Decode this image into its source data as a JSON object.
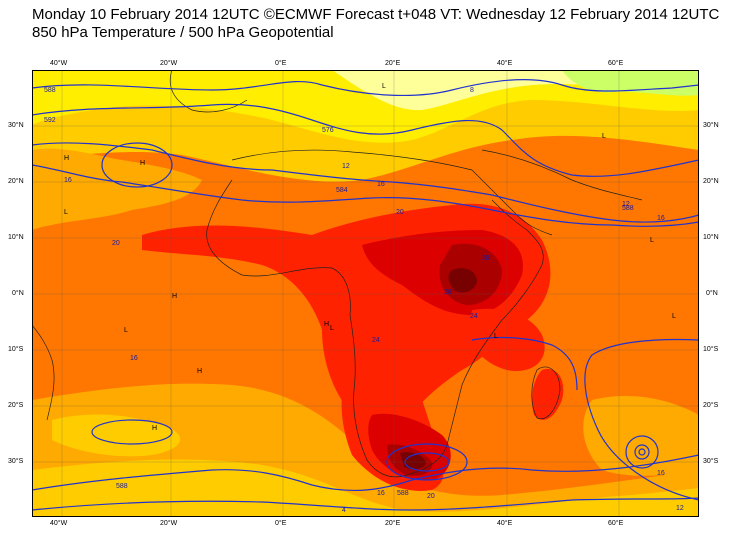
{
  "header": {
    "line1": "Monday 10 February 2014 12UTC ©ECMWF Forecast t+048 VT: Wednesday 12 February 2014 12UTC",
    "line2": "850 hPa Temperature / 500 hPa Geopotential"
  },
  "map": {
    "lon_labels": [
      "40°W",
      "20°W",
      "0°E",
      "20°E",
      "40°E",
      "60°E"
    ],
    "lat_labels": [
      "30°N",
      "20°N",
      "10°N",
      "0°N",
      "10°S",
      "20°S",
      "30°S"
    ],
    "colors": {
      "lightyellow": "#ffff99",
      "yellow": "#ffee00",
      "lightorange": "#ffcc00",
      "orange": "#ffaa00",
      "darkorange": "#ff7700",
      "red": "#ff2200",
      "crimson": "#dd0000",
      "darkred": "#aa0000",
      "maroon": "#770000",
      "green": "#ccff66",
      "contour": "#2233cc",
      "coast": "#222222"
    },
    "contour_labels": [
      "588",
      "12",
      "16",
      "20",
      "24",
      "28",
      "8",
      "4",
      "592",
      "576",
      "584"
    ],
    "pressure_markers": [
      "H",
      "L"
    ]
  }
}
